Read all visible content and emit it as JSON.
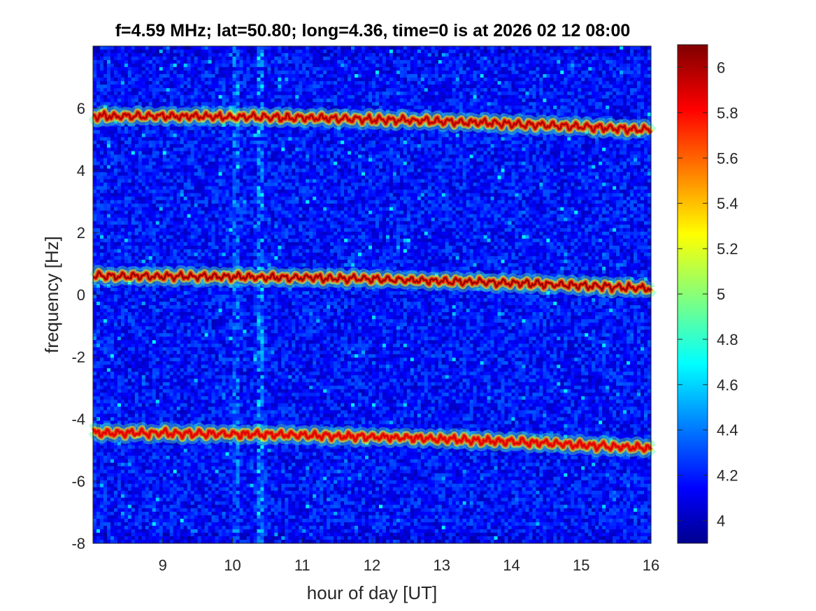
{
  "chart_data": {
    "type": "heatmap",
    "title": "f=4.59 MHz;  lat=50.80; long=4.36, time=0 is at 2026 02 12 08:00",
    "xlabel": "hour of day [UT]",
    "ylabel": "frequency [Hz]",
    "xlim": [
      8,
      16
    ],
    "ylim": [
      -8,
      8
    ],
    "xticks": [
      "9",
      "10",
      "11",
      "12",
      "13",
      "14",
      "15",
      "16"
    ],
    "yticks": [
      "-8",
      "-6",
      "-4",
      "-2",
      "0",
      "2",
      "4",
      "6"
    ],
    "colorbar": {
      "colormap": "jet",
      "clim": [
        3.9,
        6.1
      ],
      "ticks": [
        "4",
        "4.2",
        "4.4",
        "4.6",
        "4.8",
        "5",
        "5.2",
        "5.4",
        "5.6",
        "5.8",
        "6"
      ]
    },
    "background_level": 4.2,
    "bands": [
      {
        "start_freq": 5.75,
        "end_freq": 5.3,
        "peak_level": 6.0
      },
      {
        "start_freq": 0.6,
        "end_freq": 0.2,
        "peak_level": 6.05
      },
      {
        "start_freq": -4.45,
        "end_freq": -4.95,
        "peak_level": 5.9
      }
    ],
    "vertical_features": [
      {
        "hour": 10.05,
        "level": 4.6
      },
      {
        "hour": 10.4,
        "level": 4.75
      }
    ],
    "grid": false
  },
  "colors": {
    "axes_text": "#262626",
    "jet_low": "#00008f",
    "jet_high": "#800000"
  }
}
